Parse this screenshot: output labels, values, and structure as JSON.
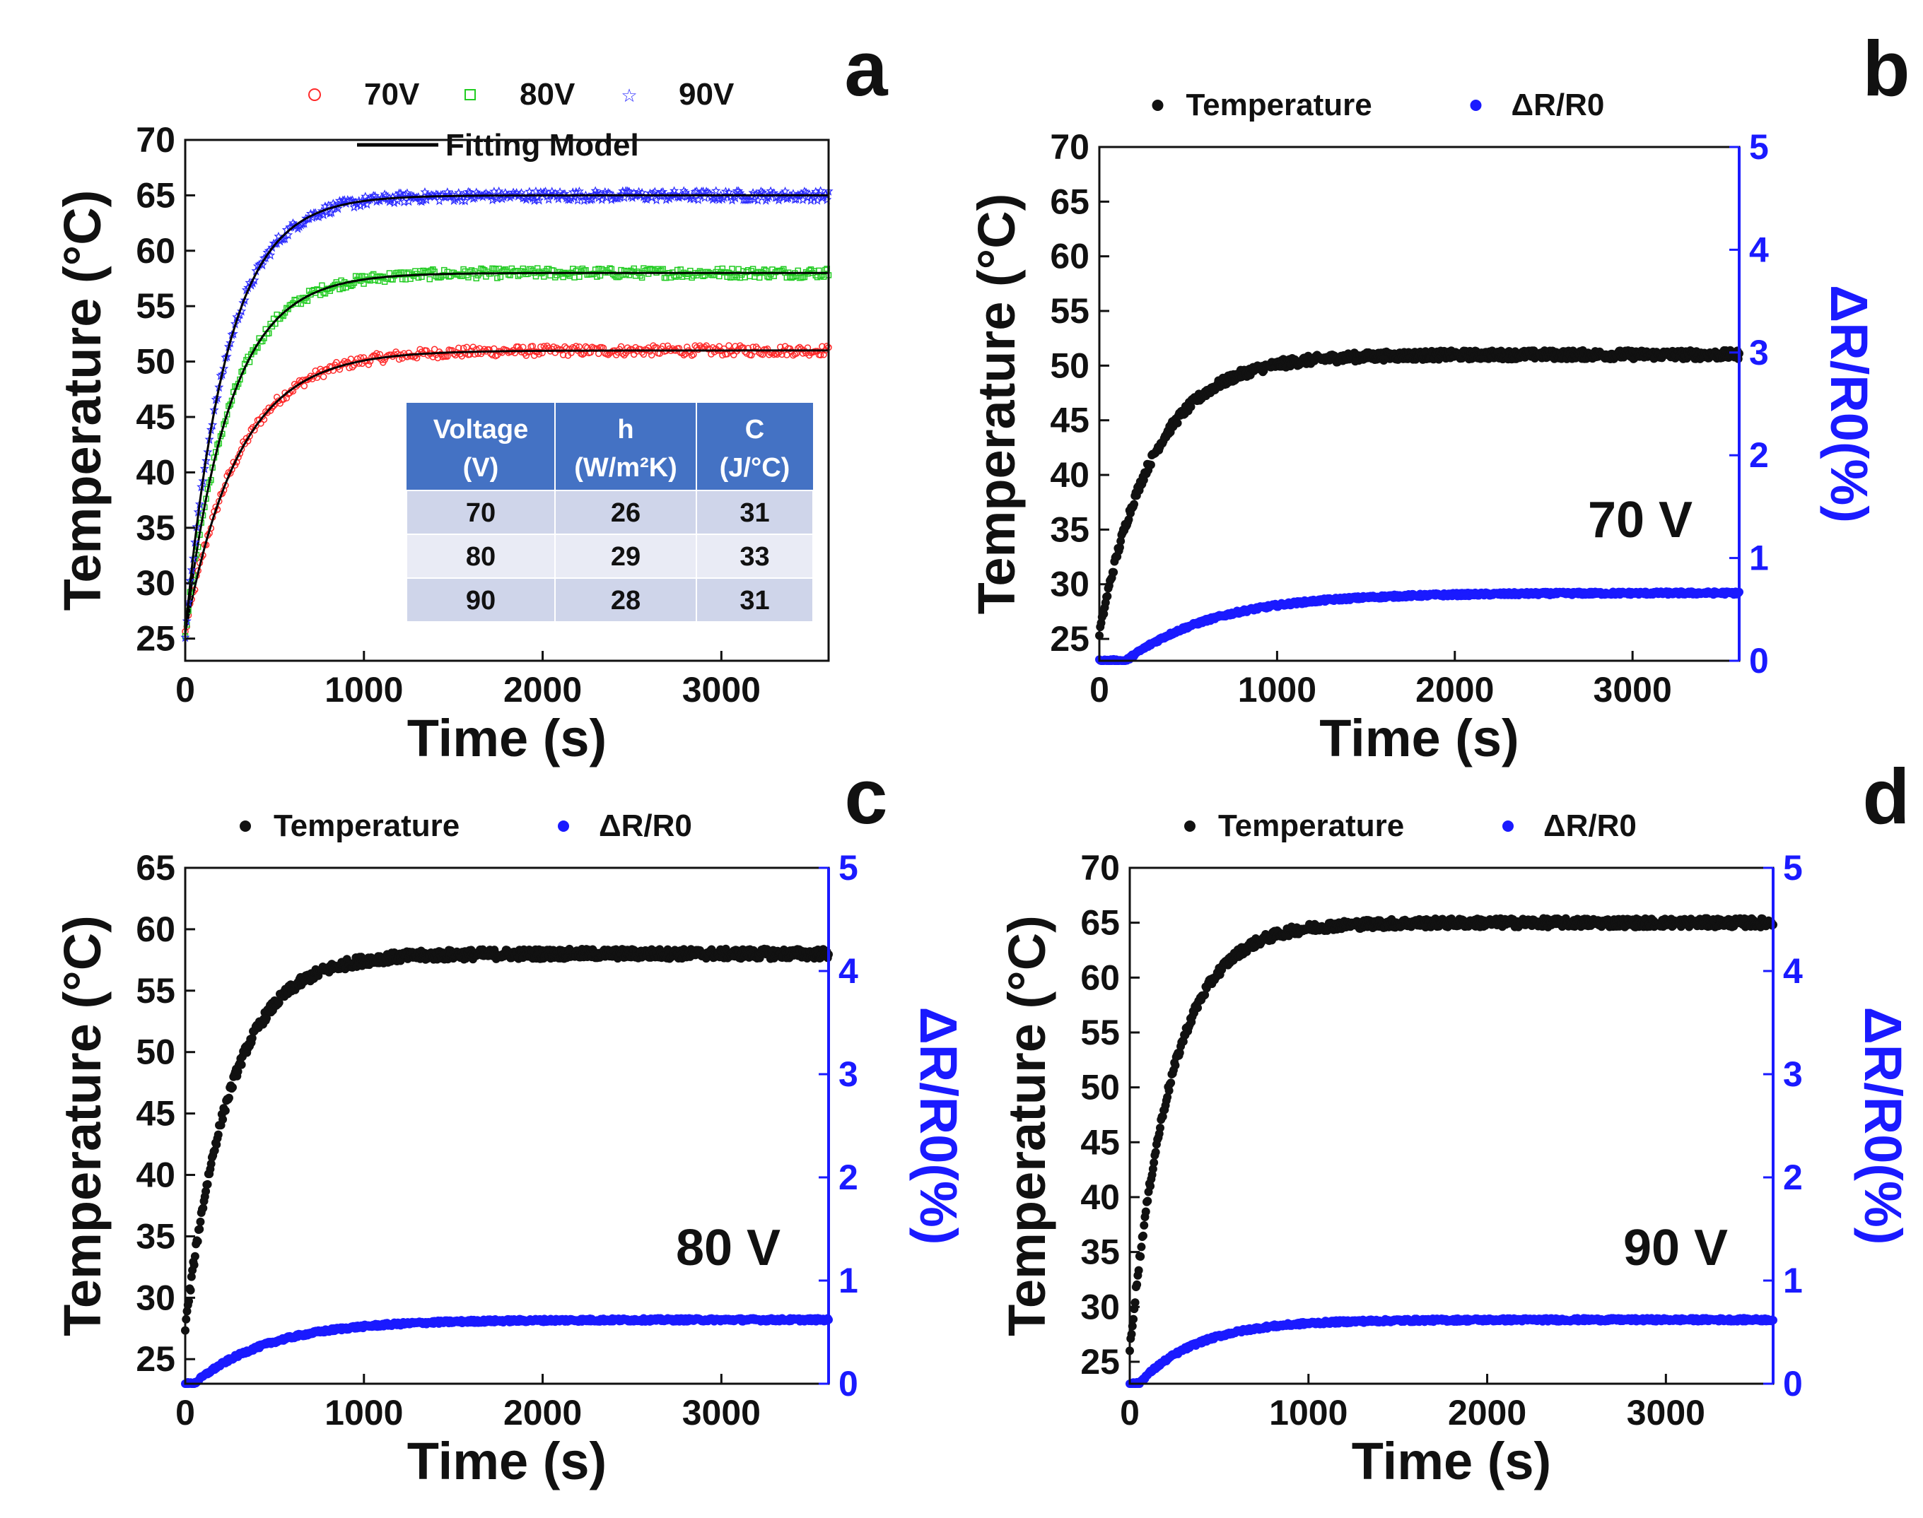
{
  "chart_data": [
    {
      "id": "a",
      "type": "scatter",
      "panel_label": "a",
      "xlabel": "Time (s)",
      "ylabel": "Temperature (°C)",
      "xlim": [
        0,
        3600
      ],
      "ylim": [
        23,
        70
      ],
      "xticks": [
        0,
        1000,
        2000,
        3000
      ],
      "yticks": [
        25,
        30,
        35,
        40,
        45,
        50,
        55,
        60,
        65,
        70
      ],
      "legend": [
        {
          "label": "70V",
          "marker": "circle",
          "color": "#ff2a2a"
        },
        {
          "label": "80V",
          "marker": "square",
          "color": "#22cc22"
        },
        {
          "label": "90V",
          "marker": "star",
          "color": "#2a2aff"
        },
        {
          "label": "Fitting Model",
          "marker": "line",
          "color": "#000000"
        }
      ],
      "series": [
        {
          "name": "70V",
          "color": "#ff2a2a",
          "t0": 25.5,
          "tinf": 51.0,
          "tau": 300
        },
        {
          "name": "80V",
          "color": "#22cc22",
          "t0": 25.5,
          "tinf": 58.0,
          "tau": 250
        },
        {
          "name": "90V",
          "color": "#2a2aff",
          "t0": 25.5,
          "tinf": 65.0,
          "tau": 230
        }
      ],
      "table": {
        "headers": [
          [
            "Voltage",
            "(V)"
          ],
          [
            "h",
            "(W/m²K)"
          ],
          [
            "C",
            "(J/°C)"
          ]
        ],
        "rows": [
          [
            "70",
            "26",
            "31"
          ],
          [
            "80",
            "29",
            "33"
          ],
          [
            "90",
            "28",
            "31"
          ]
        ]
      }
    },
    {
      "id": "b",
      "type": "scatter",
      "panel_label": "b",
      "annotation": "70 V",
      "xlabel": "Time (s)",
      "ylabel": "Temperature (°C)",
      "y2label": "ΔR/R0(%)",
      "xlim": [
        0,
        3600
      ],
      "ylim": [
        23,
        70
      ],
      "y2lim": [
        0,
        5
      ],
      "xticks": [
        0,
        1000,
        2000,
        3000
      ],
      "yticks": [
        25,
        30,
        35,
        40,
        45,
        50,
        55,
        60,
        65,
        70
      ],
      "y2ticks": [
        0,
        1,
        2,
        3,
        4,
        5
      ],
      "legend": [
        {
          "label": "Temperature",
          "color": "#000000"
        },
        {
          "label": "ΔR/R0",
          "color": "#1a1aff"
        }
      ],
      "temperature": {
        "t0": 25.5,
        "tinf": 51.0,
        "tau": 300
      },
      "resistance": {
        "delay": 150,
        "rinf": 0.66,
        "tau": 500
      }
    },
    {
      "id": "c",
      "type": "scatter",
      "panel_label": "c",
      "annotation": "80 V",
      "xlabel": "Time (s)",
      "ylabel": "Temperature (°C)",
      "y2label": "ΔR/R0(%)",
      "xlim": [
        0,
        3600
      ],
      "ylim": [
        23,
        65
      ],
      "y2lim": [
        0,
        5
      ],
      "xticks": [
        0,
        1000,
        2000,
        3000
      ],
      "yticks": [
        25,
        30,
        35,
        40,
        45,
        50,
        55,
        60,
        65
      ],
      "y2ticks": [
        0,
        1,
        2,
        3,
        4,
        5
      ],
      "legend": [
        {
          "label": "Temperature",
          "color": "#000000"
        },
        {
          "label": "ΔR/R0",
          "color": "#1a1aff"
        }
      ],
      "temperature": {
        "t0": 27.5,
        "tinf": 58.0,
        "tau": 250
      },
      "resistance": {
        "delay": 50,
        "rinf": 0.62,
        "tau": 420
      }
    },
    {
      "id": "d",
      "type": "scatter",
      "panel_label": "d",
      "annotation": "90 V",
      "xlabel": "Time (s)",
      "ylabel": "Temperature (°C)",
      "y2label": "ΔR/R0(%)",
      "xlim": [
        0,
        3600
      ],
      "ylim": [
        23,
        70
      ],
      "y2lim": [
        0,
        5
      ],
      "xticks": [
        0,
        1000,
        2000,
        3000
      ],
      "yticks": [
        25,
        30,
        35,
        40,
        45,
        50,
        55,
        60,
        65,
        70
      ],
      "y2ticks": [
        0,
        1,
        2,
        3,
        4,
        5
      ],
      "legend": [
        {
          "label": "Temperature",
          "color": "#000000"
        },
        {
          "label": "ΔR/R0",
          "color": "#1a1aff"
        }
      ],
      "temperature": {
        "t0": 26.0,
        "tinf": 65.0,
        "tau": 230
      },
      "resistance": {
        "delay": 50,
        "rinf": 0.62,
        "tau": 330
      }
    }
  ]
}
